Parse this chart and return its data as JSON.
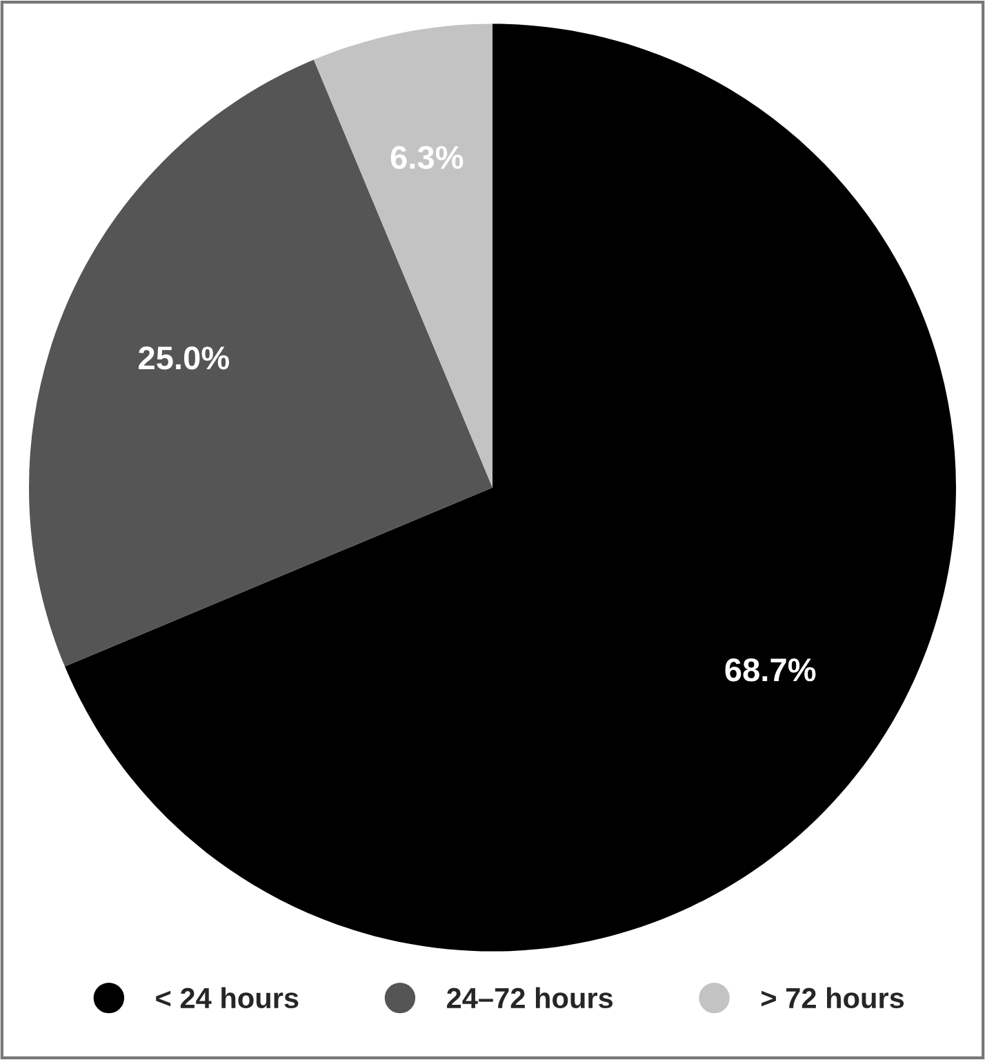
{
  "chart_data": {
    "type": "pie",
    "categories": [
      "< 24 hours",
      "24–72 hours",
      "> 72 hours"
    ],
    "values": [
      68.7,
      25.0,
      6.3
    ],
    "value_labels": [
      "68.7%",
      "25.0%",
      "6.3%"
    ],
    "colors": [
      "#000000",
      "#555555",
      "#c3c3c3"
    ],
    "legend": "bottom"
  }
}
